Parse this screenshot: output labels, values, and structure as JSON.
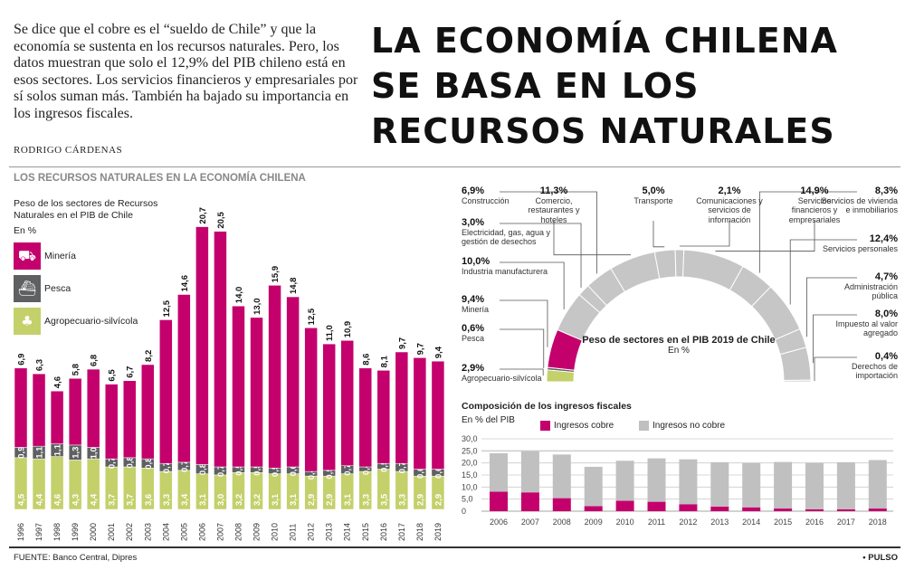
{
  "intro": "Se dice que el cobre es el “sueldo de Chile” y que la economía se sustenta en los recursos naturales. Pero, los datos muestran que solo el 12,9% del PIB chileno está en esos sectores. Los servicios financieros y empresariales por sí solos suman más. También ha bajado su importancia en los ingresos fiscales.",
  "title": "LA ECONOMÍA CHILENA SE BASA EN LOS RECURSOS NATURALES",
  "author": "RODRIGO CÁRDENAS",
  "section": "LOS RECURSOS NATURALES EN LA ECONOMÍA CHILENA",
  "footer": {
    "source": "FUENTE: Banco Central, Dipres",
    "brand": "• PULSO"
  },
  "colors": {
    "mineria": "#c4006d",
    "pesca": "#5f6062",
    "agro": "#c4d06a",
    "no_cobre": "#c0c0c0",
    "arc": "#c6c6c6"
  },
  "chart_data": [
    {
      "type": "bar",
      "stacked": true,
      "title": "Peso de los sectores de Recursos Naturales en el PIB de Chile",
      "subtitle": "En %",
      "categories": [
        "1996",
        "1997",
        "1998",
        "1999",
        "2000",
        "2001",
        "2002",
        "2003",
        "2004",
        "2005",
        "2006",
        "2007",
        "2008",
        "2009",
        "2010",
        "2011",
        "2012",
        "2013",
        "2014",
        "2015",
        "2016",
        "2017",
        "2018",
        "2019"
      ],
      "series": [
        {
          "name": "Agropecuario-silvícola",
          "icon": "forest-icon",
          "values": [
            4.5,
            4.4,
            4.6,
            4.3,
            4.4,
            3.7,
            3.7,
            3.6,
            3.3,
            3.4,
            3.1,
            3.0,
            3.2,
            3.2,
            3.1,
            3.1,
            2.9,
            2.9,
            3.1,
            3.3,
            3.5,
            3.3,
            2.9,
            2.9
          ]
        },
        {
          "name": "Pesca",
          "icon": "fishing-boat-icon",
          "values": [
            0.9,
            1.1,
            1.1,
            1.3,
            1.0,
            0.7,
            0.8,
            0.8,
            0.7,
            0.7,
            0.8,
            0.7,
            0.5,
            0.5,
            0.5,
            0.6,
            0.4,
            0.5,
            0.7,
            0.4,
            0.5,
            0.7,
            0.6,
            0.6
          ]
        },
        {
          "name": "Minería",
          "icon": "mining-truck-icon",
          "values": [
            6.9,
            6.3,
            4.6,
            5.8,
            6.8,
            6.5,
            6.7,
            8.2,
            12.5,
            14.6,
            20.7,
            20.5,
            14.0,
            13.0,
            15.9,
            14.8,
            12.5,
            11.0,
            10.9,
            8.6,
            8.1,
            9.7,
            9.7,
            9.4
          ]
        }
      ]
    },
    {
      "type": "pie",
      "shape": "semicircle",
      "title": "Peso de sectores en el PIB 2019 de Chile",
      "subtitle": "En %",
      "slices": [
        {
          "label": "Agropecuario-silvícola",
          "value": "2,9%",
          "v": 2.9
        },
        {
          "label": "Pesca",
          "value": "0,6%",
          "v": 0.6
        },
        {
          "label": "Minería",
          "value": "9,4%",
          "v": 9.4
        },
        {
          "label": "Industria manufacturera",
          "value": "10,0%",
          "v": 10.0
        },
        {
          "label": "Electricidad, gas, agua y gestión de desechos",
          "value": "3,0%",
          "v": 3.0
        },
        {
          "label": "Construcción",
          "value": "6,9%",
          "v": 6.9
        },
        {
          "label": "Comercio, restaurantes y hoteles",
          "value": "11,3%",
          "v": 11.3
        },
        {
          "label": "Transporte",
          "value": "5,0%",
          "v": 5.0
        },
        {
          "label": "Comunicaciones y servicios de información",
          "value": "2,1%",
          "v": 2.1
        },
        {
          "label": "Servicios financieros y empresariales",
          "value": "14,9%",
          "v": 14.9
        },
        {
          "label": "Servicios de vivienda e inmobiliarios",
          "value": "8,3%",
          "v": 8.3
        },
        {
          "label": "Servicios personales",
          "value": "12,4%",
          "v": 12.4
        },
        {
          "label": "Administración pública",
          "value": "4,7%",
          "v": 4.7
        },
        {
          "label": "Impuesto al valor agregado",
          "value": "8,0%",
          "v": 8.0
        },
        {
          "label": "Derechos de importación",
          "value": "0,4%",
          "v": 0.4
        }
      ]
    },
    {
      "type": "bar",
      "stacked": true,
      "title": "Composición de los ingresos fiscales",
      "subtitle": "En % del PIB",
      "ylim": [
        0,
        30
      ],
      "grid": true,
      "legend": "top",
      "yticks": [
        "0",
        "5,0",
        "10,0",
        "15,0",
        "20,0",
        "25,0",
        "30,0"
      ],
      "categories": [
        "2006",
        "2007",
        "2008",
        "2009",
        "2010",
        "2011",
        "2012",
        "2013",
        "2014",
        "2015",
        "2016",
        "2017",
        "2018"
      ],
      "series": [
        {
          "name": "Ingresos cobre",
          "values": [
            8.1,
            7.8,
            5.4,
            2.1,
            4.3,
            3.9,
            2.9,
            1.9,
            1.6,
            1.1,
            0.8,
            0.8,
            1.1
          ]
        },
        {
          "name": "Ingresos no cobre",
          "values": [
            15.9,
            17.0,
            18.1,
            16.3,
            16.6,
            18.0,
            18.6,
            18.4,
            18.4,
            19.3,
            19.3,
            19.5,
            20.1
          ]
        }
      ]
    }
  ]
}
